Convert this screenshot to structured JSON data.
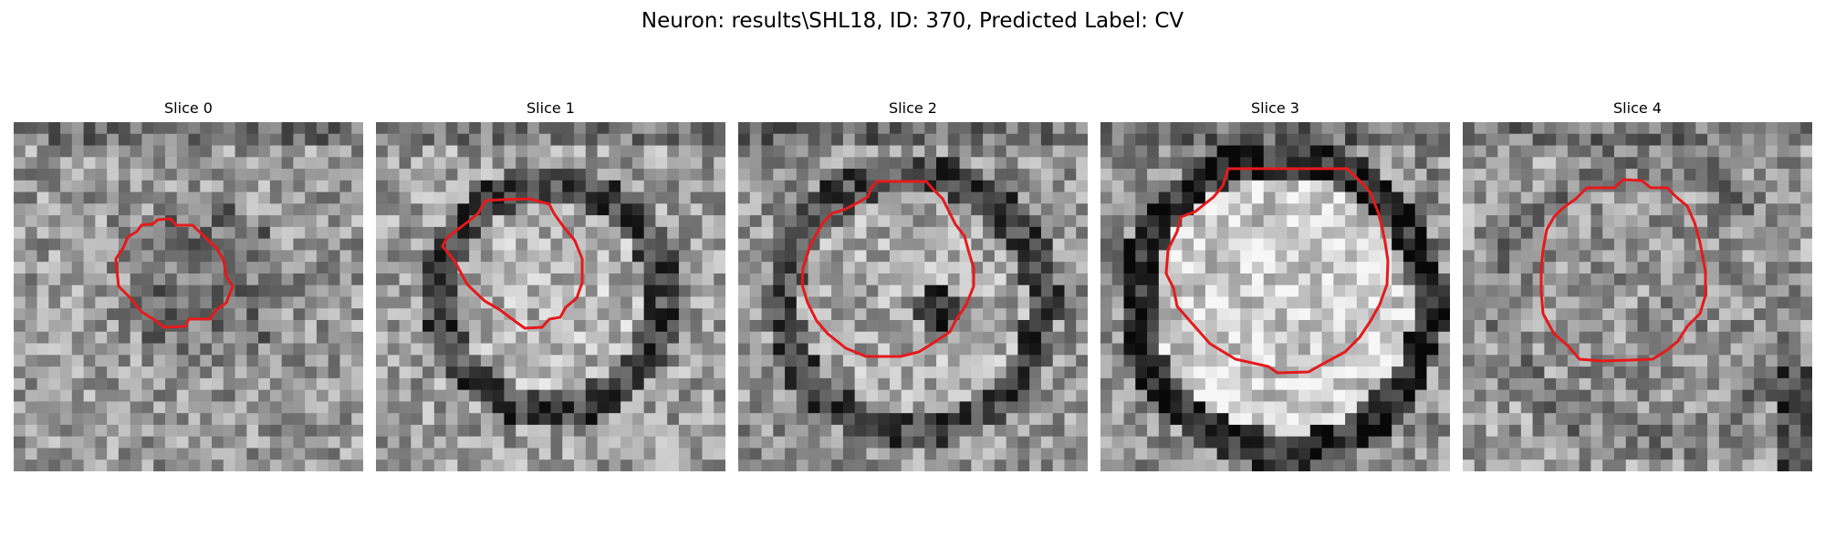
{
  "figure": {
    "title": "Neuron: results\\SHL18, ID: 370, Predicted Label: CV"
  },
  "panels": [
    {
      "title": "Slice 0"
    },
    {
      "title": "Slice 1"
    },
    {
      "title": "Slice 2"
    },
    {
      "title": "Slice 3"
    },
    {
      "title": "Slice 4"
    }
  ],
  "colors": {
    "contour": "#e41a1c",
    "background": "#ffffff"
  },
  "image": {
    "colormap": "grayscale",
    "grid_cells": 30
  }
}
